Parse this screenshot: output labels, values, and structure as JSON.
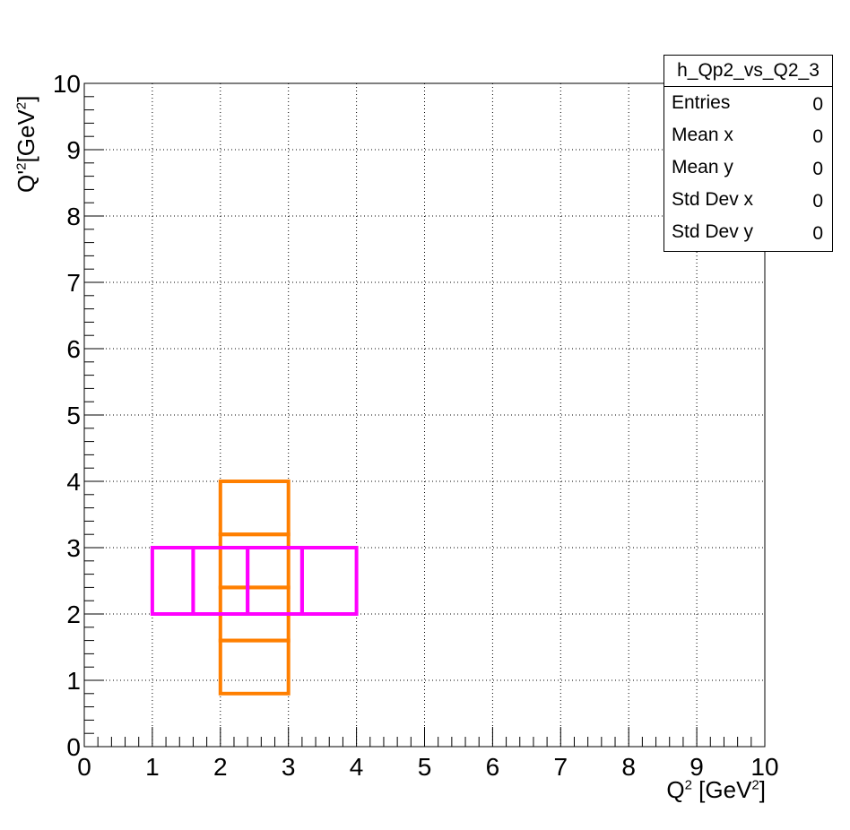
{
  "chart_data": {
    "type": "box",
    "xlim": [
      0,
      10
    ],
    "ylim": [
      0,
      10
    ],
    "x_ticks": [
      "0",
      "1",
      "2",
      "3",
      "4",
      "5",
      "6",
      "7",
      "8",
      "9",
      "10"
    ],
    "y_ticks": [
      "0",
      "1",
      "2",
      "3",
      "4",
      "5",
      "6",
      "7",
      "8",
      "9",
      "10"
    ],
    "xlabel": {
      "base": "Q",
      "exp": "2",
      "unit_open": " [GeV",
      "unit_exp": "2",
      "unit_close": "]"
    },
    "ylabel": {
      "base": "Q'",
      "exp": "2",
      "unit_open": "[GeV",
      "unit_exp": "2",
      "unit_close": "]"
    },
    "grid": true,
    "series": [
      {
        "color": "#ff7f00",
        "boxes": [
          {
            "x0": 2,
            "x1": 3,
            "y0": 0.8,
            "y1": 1.6
          },
          {
            "x0": 2,
            "x1": 3,
            "y0": 1.6,
            "y1": 2.4
          },
          {
            "x0": 2,
            "x1": 3,
            "y0": 2.4,
            "y1": 3.2
          },
          {
            "x0": 2,
            "x1": 3,
            "y0": 3.2,
            "y1": 4.0
          }
        ]
      },
      {
        "color": "#ff00ff",
        "boxes": [
          {
            "x0": 1.0,
            "x1": 1.6,
            "y0": 2,
            "y1": 3
          },
          {
            "x0": 1.6,
            "x1": 2.4,
            "y0": 2,
            "y1": 3
          },
          {
            "x0": 2.4,
            "x1": 3.2,
            "y0": 2,
            "y1": 3
          },
          {
            "x0": 3.2,
            "x1": 4.0,
            "y0": 2,
            "y1": 3
          }
        ]
      }
    ]
  },
  "stats": {
    "title": "h_Qp2_vs_Q2_3",
    "rows": [
      {
        "label": "Entries",
        "value": "0"
      },
      {
        "label": "Mean x",
        "value": "0"
      },
      {
        "label": "Mean y",
        "value": "0"
      },
      {
        "label": "Std Dev x",
        "value": "0"
      },
      {
        "label": "Std Dev y",
        "value": "0"
      }
    ]
  }
}
